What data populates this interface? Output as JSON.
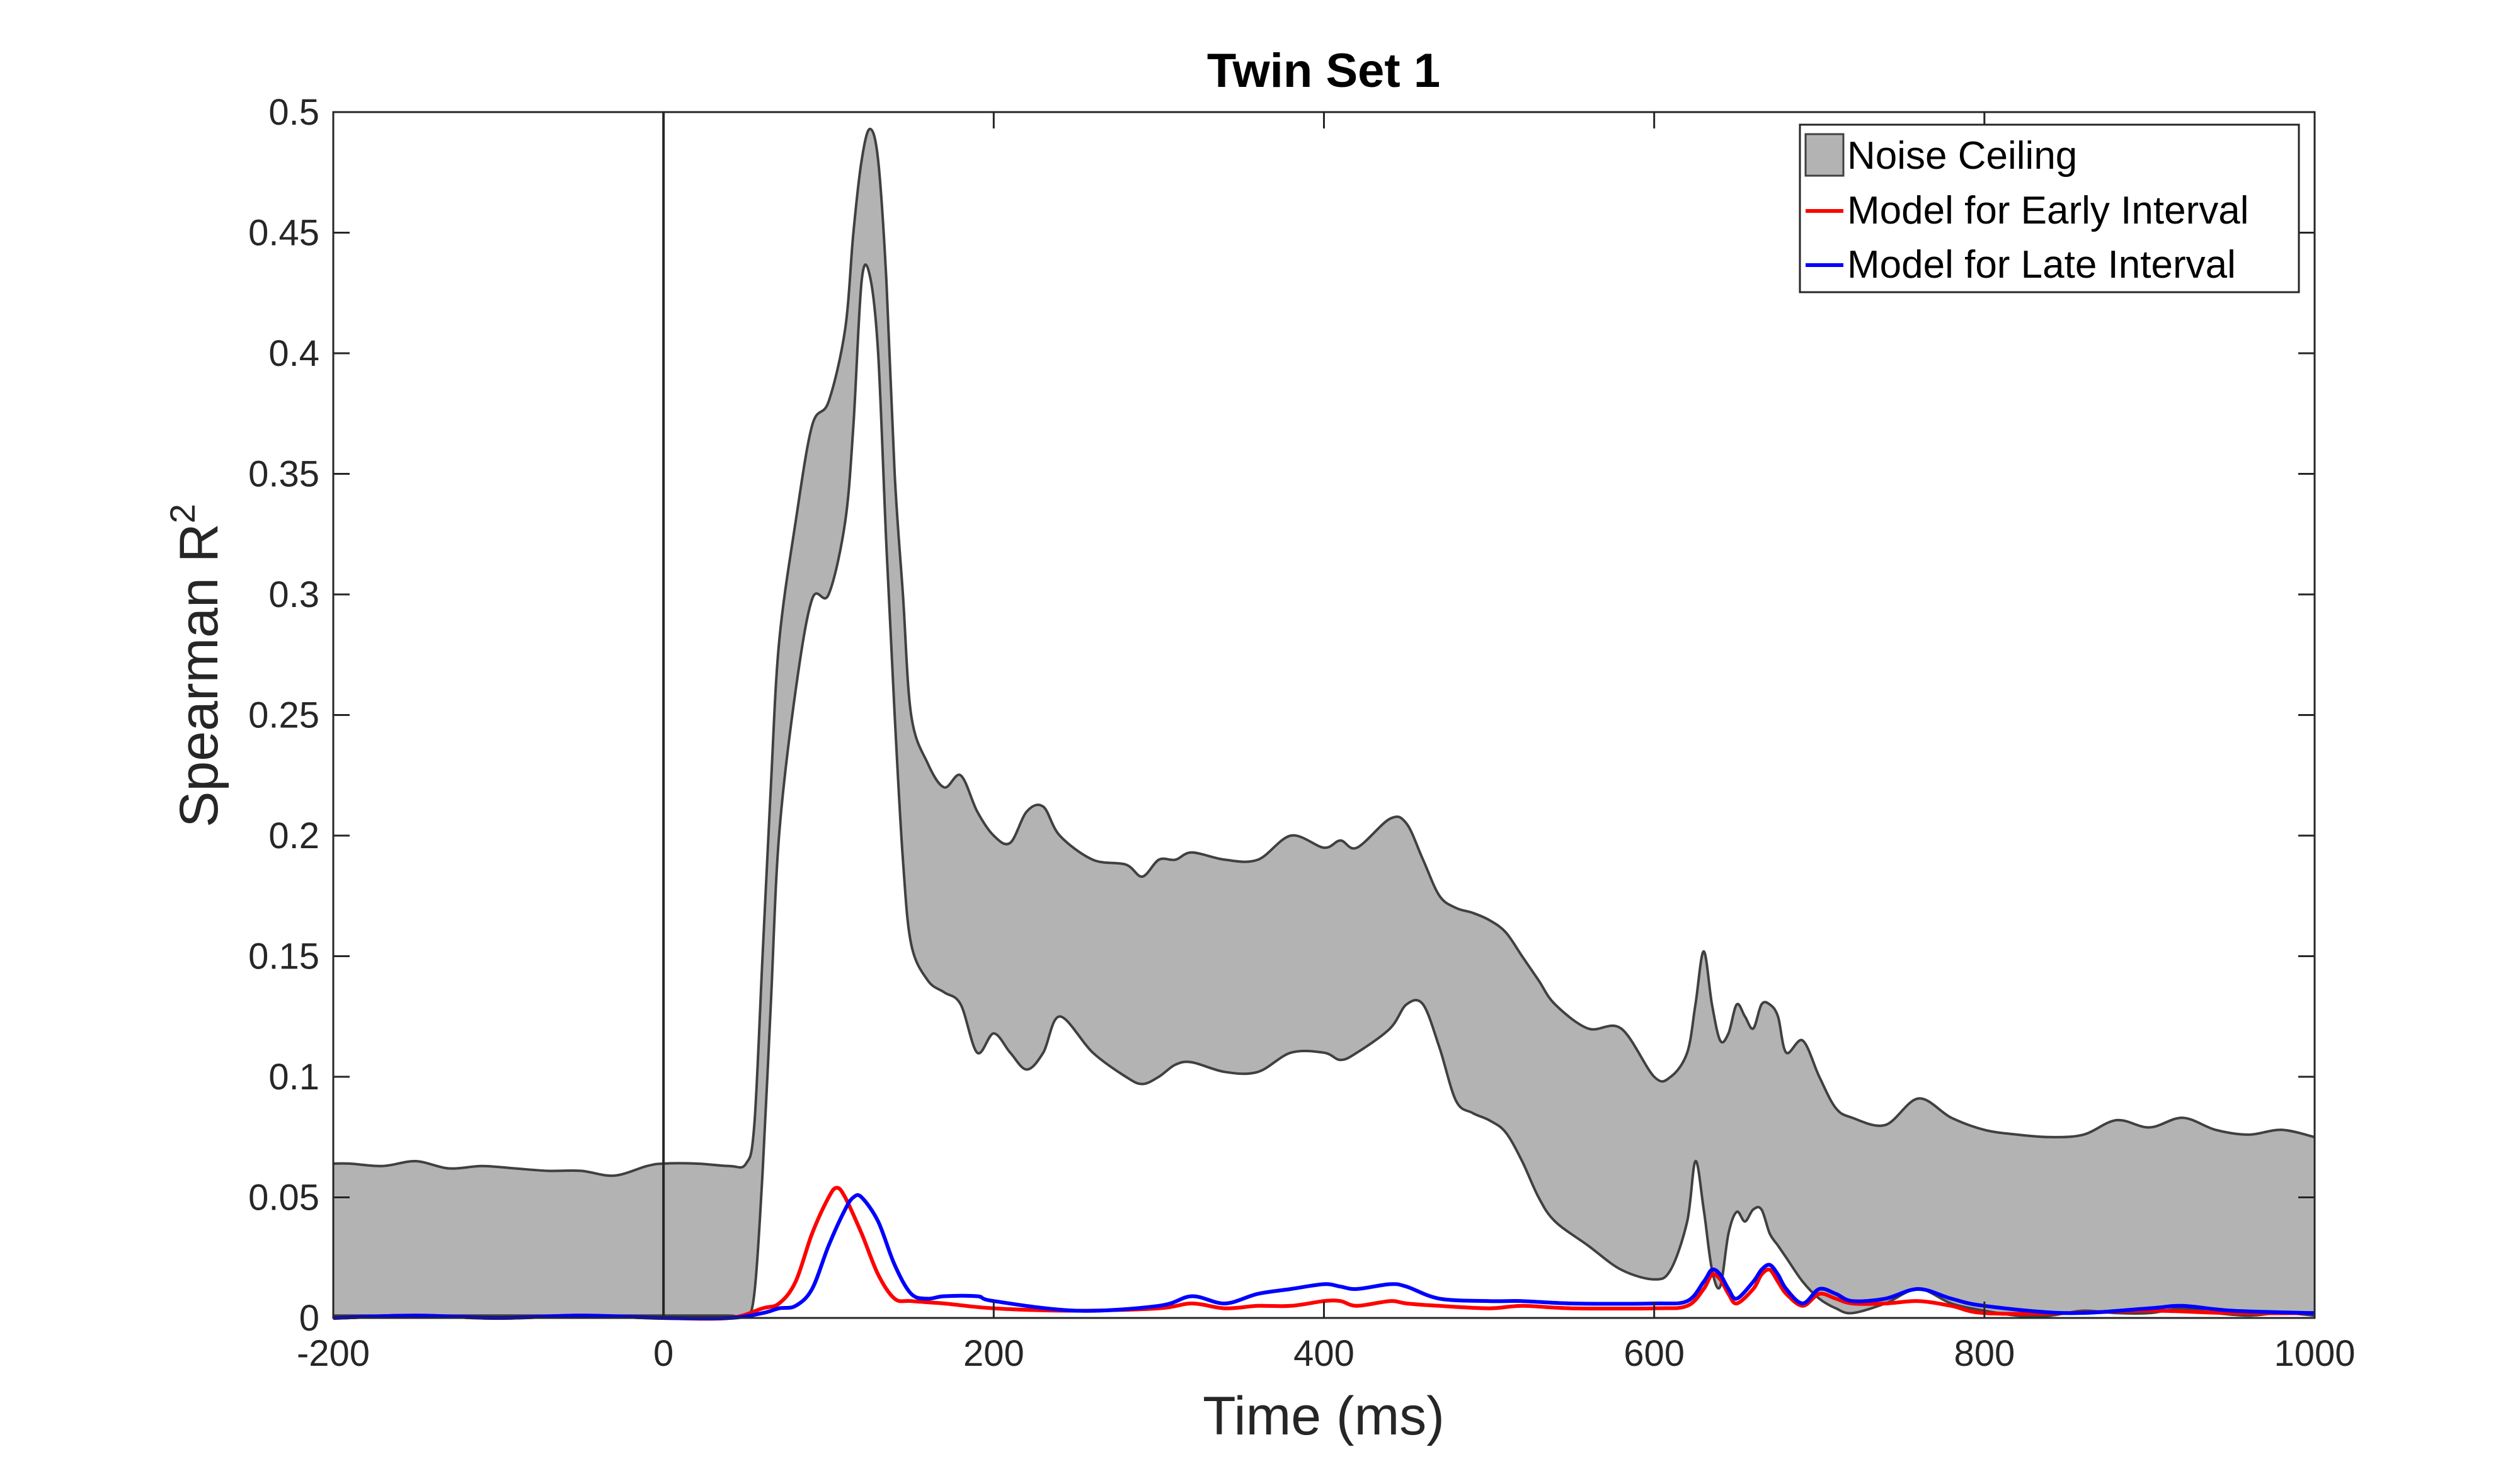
{
  "chart_data": {
    "type": "area",
    "title": "Twin Set 1",
    "xlabel": "Time (ms)",
    "ylabel_main": "Spearman R",
    "ylabel_sup": "2",
    "xlim": [
      -200,
      1000
    ],
    "ylim": [
      0,
      0.5
    ],
    "xticks": [
      -200,
      0,
      200,
      400,
      600,
      800,
      1000
    ],
    "xtick_labels": [
      "-200",
      "0",
      "200",
      "400",
      "600",
      "800",
      "1000"
    ],
    "yticks": [
      0,
      0.05,
      0.1,
      0.15,
      0.2,
      0.25,
      0.3,
      0.35,
      0.4,
      0.45,
      0.5
    ],
    "ytick_labels": [
      "0",
      "0.05",
      "0.1",
      "0.15",
      "0.2",
      "0.25",
      "0.3",
      "0.35",
      "0.4",
      "0.45",
      "0.5"
    ],
    "grid": false,
    "legend_position": "top-right",
    "vline_x": 0,
    "colors": {
      "noise_fill": "#b3b3b3",
      "noise_edge": "#404040",
      "early": "#ff0000",
      "late": "#0000ff",
      "vline": "#262626"
    },
    "noise_ceiling": {
      "name": "Noise Ceiling",
      "x": [
        -200,
        -190,
        -170,
        -150,
        -130,
        -110,
        -90,
        -70,
        -50,
        -30,
        -10,
        0,
        20,
        40,
        50,
        55,
        60,
        65,
        70,
        80,
        90,
        100,
        110,
        115,
        120,
        125,
        130,
        135,
        140,
        145,
        150,
        160,
        170,
        180,
        190,
        200,
        210,
        220,
        230,
        240,
        260,
        280,
        290,
        300,
        310,
        320,
        340,
        360,
        380,
        400,
        410,
        420,
        440,
        450,
        460,
        470,
        480,
        490,
        500,
        510,
        520,
        530,
        540,
        560,
        580,
        600,
        610,
        620,
        625,
        630,
        635,
        640,
        645,
        650,
        655,
        660,
        665,
        670,
        675,
        680,
        690,
        700,
        710,
        720,
        740,
        760,
        780,
        800,
        820,
        840,
        860,
        880,
        900,
        920,
        940,
        960,
        980,
        1000
      ],
      "upper": [
        0.064,
        0.064,
        0.063,
        0.065,
        0.062,
        0.063,
        0.062,
        0.061,
        0.061,
        0.059,
        0.063,
        0.064,
        0.064,
        0.063,
        0.064,
        0.08,
        0.15,
        0.22,
        0.28,
        0.33,
        0.37,
        0.38,
        0.41,
        0.45,
        0.48,
        0.493,
        0.48,
        0.43,
        0.35,
        0.3,
        0.25,
        0.23,
        0.22,
        0.225,
        0.21,
        0.2,
        0.197,
        0.21,
        0.212,
        0.2,
        0.19,
        0.188,
        0.183,
        0.19,
        0.19,
        0.193,
        0.19,
        0.19,
        0.2,
        0.195,
        0.198,
        0.195,
        0.207,
        0.205,
        0.19,
        0.175,
        0.17,
        0.168,
        0.165,
        0.16,
        0.15,
        0.14,
        0.13,
        0.12,
        0.12,
        0.1,
        0.1,
        0.11,
        0.13,
        0.152,
        0.13,
        0.115,
        0.118,
        0.13,
        0.125,
        0.12,
        0.13,
        0.13,
        0.125,
        0.11,
        0.115,
        0.1,
        0.087,
        0.083,
        0.08,
        0.091,
        0.083,
        0.078,
        0.076,
        0.075,
        0.076,
        0.082,
        0.079,
        0.083,
        0.078,
        0.076,
        0.078,
        0.075
      ],
      "lower": [
        0.001,
        0.001,
        0.001,
        0.001,
        0.001,
        0.001,
        0.001,
        0.001,
        0.001,
        0.001,
        0.001,
        0.001,
        0.001,
        0.001,
        0.001,
        0.01,
        0.06,
        0.13,
        0.2,
        0.26,
        0.298,
        0.3,
        0.33,
        0.37,
        0.43,
        0.432,
        0.4,
        0.32,
        0.25,
        0.19,
        0.155,
        0.14,
        0.135,
        0.13,
        0.11,
        0.118,
        0.11,
        0.103,
        0.11,
        0.125,
        0.11,
        0.1,
        0.097,
        0.1,
        0.105,
        0.106,
        0.102,
        0.102,
        0.11,
        0.11,
        0.107,
        0.11,
        0.12,
        0.13,
        0.13,
        0.112,
        0.09,
        0.085,
        0.082,
        0.077,
        0.065,
        0.05,
        0.04,
        0.03,
        0.02,
        0.016,
        0.02,
        0.04,
        0.065,
        0.045,
        0.02,
        0.013,
        0.035,
        0.044,
        0.04,
        0.045,
        0.045,
        0.035,
        0.03,
        0.025,
        0.015,
        0.008,
        0.004,
        0.002,
        0.006,
        0.012,
        0.006,
        0.003,
        0.001,
        0.001,
        0.003,
        0.002,
        0.002,
        0.004,
        0.002,
        0.001,
        0.002,
        0.001
      ]
    },
    "series": [
      {
        "name": "Model for Early Interval",
        "x": [
          -200,
          -150,
          -100,
          -50,
          0,
          40,
          60,
          70,
          80,
          90,
          100,
          105,
          110,
          120,
          130,
          140,
          150,
          170,
          200,
          250,
          300,
          320,
          340,
          360,
          380,
          400,
          410,
          420,
          440,
          450,
          470,
          500,
          520,
          550,
          600,
          620,
          630,
          635,
          640,
          645,
          650,
          660,
          665,
          670,
          675,
          680,
          690,
          700,
          710,
          720,
          740,
          760,
          780,
          800,
          850,
          900,
          950,
          1000
        ],
        "y": [
          0.0,
          0.001,
          0.0,
          0.001,
          0.0,
          0.0,
          0.004,
          0.006,
          0.015,
          0.035,
          0.05,
          0.054,
          0.05,
          0.035,
          0.018,
          0.008,
          0.007,
          0.006,
          0.004,
          0.003,
          0.004,
          0.006,
          0.004,
          0.005,
          0.005,
          0.007,
          0.007,
          0.005,
          0.007,
          0.006,
          0.005,
          0.004,
          0.005,
          0.004,
          0.004,
          0.005,
          0.012,
          0.018,
          0.016,
          0.01,
          0.006,
          0.012,
          0.018,
          0.02,
          0.015,
          0.01,
          0.005,
          0.01,
          0.008,
          0.006,
          0.006,
          0.007,
          0.005,
          0.002,
          0.002,
          0.003,
          0.002,
          0.002
        ]
      },
      {
        "name": "Model for Late Interval",
        "x": [
          -200,
          -150,
          -100,
          -50,
          0,
          40,
          60,
          70,
          80,
          90,
          100,
          110,
          115,
          120,
          130,
          140,
          150,
          160,
          170,
          190,
          200,
          250,
          300,
          320,
          340,
          360,
          380,
          400,
          410,
          420,
          440,
          450,
          470,
          500,
          520,
          550,
          600,
          620,
          630,
          635,
          640,
          645,
          650,
          660,
          665,
          670,
          675,
          680,
          690,
          700,
          710,
          720,
          740,
          760,
          780,
          800,
          850,
          900,
          920,
          950,
          1000
        ],
        "y": [
          0.0,
          0.001,
          0.0,
          0.001,
          0.0,
          0.0,
          0.002,
          0.004,
          0.005,
          0.012,
          0.03,
          0.045,
          0.05,
          0.05,
          0.04,
          0.022,
          0.01,
          0.008,
          0.009,
          0.009,
          0.007,
          0.003,
          0.005,
          0.009,
          0.006,
          0.01,
          0.012,
          0.014,
          0.013,
          0.012,
          0.014,
          0.013,
          0.008,
          0.007,
          0.007,
          0.006,
          0.006,
          0.007,
          0.015,
          0.02,
          0.018,
          0.012,
          0.008,
          0.015,
          0.02,
          0.022,
          0.018,
          0.012,
          0.006,
          0.012,
          0.01,
          0.007,
          0.008,
          0.012,
          0.008,
          0.005,
          0.002,
          0.004,
          0.005,
          0.003,
          0.002
        ]
      }
    ]
  }
}
